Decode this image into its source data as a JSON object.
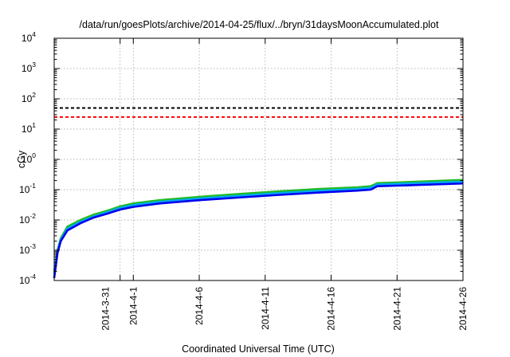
{
  "chart_data": {
    "type": "line",
    "title": "/data/run/goesPlots/archive/2014-04-25/flux/../bryn/31daysMoonAccumulated.plot",
    "xlabel": "Coordinated Universal Time (UTC)",
    "ylabel": "cGy",
    "y_scale": "log",
    "ylim": [
      0.0001,
      10000
    ],
    "y_ticks": [
      {
        "base": "10",
        "exp": "-4"
      },
      {
        "base": "10",
        "exp": "-3"
      },
      {
        "base": "10",
        "exp": "-2"
      },
      {
        "base": "10",
        "exp": "-1"
      },
      {
        "base": "10",
        "exp": "0"
      },
      {
        "base": "10",
        "exp": "1"
      },
      {
        "base": "10",
        "exp": "2"
      },
      {
        "base": "10",
        "exp": "3"
      },
      {
        "base": "10",
        "exp": "4"
      }
    ],
    "xlim": [
      "2014-03-26",
      "2014-04-26"
    ],
    "x_ticks": [
      "2014-3-31",
      "2014-4-1",
      "2014-4-6",
      "2014-4-11",
      "2014-4-16",
      "2014-4-21",
      "2014-4-26"
    ],
    "grid": true,
    "reference_lines": [
      {
        "y": 50,
        "color": "#000000",
        "style": "dashed"
      },
      {
        "y": 25,
        "color": "#ff0000",
        "style": "dashed"
      }
    ],
    "series": [
      {
        "color": "#22bb22",
        "x": [
          "2014-03-26",
          "2014-03-26 06:00",
          "2014-03-26 12:00",
          "2014-03-27",
          "2014-03-28",
          "2014-03-29",
          "2014-03-30",
          "2014-03-31",
          "2014-04-01",
          "2014-04-03",
          "2014-04-06",
          "2014-04-09",
          "2014-04-12",
          "2014-04-15",
          "2014-04-18",
          "2014-04-19",
          "2014-04-19 12:00",
          "2014-04-22",
          "2014-04-26"
        ],
        "y": [
          0.0002,
          0.001,
          0.0025,
          0.006,
          0.01,
          0.015,
          0.02,
          0.028,
          0.035,
          0.045,
          0.058,
          0.072,
          0.088,
          0.105,
          0.12,
          0.13,
          0.165,
          0.18,
          0.21
        ]
      },
      {
        "color": "#00aaee",
        "x": [
          "2014-03-26",
          "2014-03-26 06:00",
          "2014-03-26 12:00",
          "2014-03-27",
          "2014-03-28",
          "2014-03-29",
          "2014-03-30",
          "2014-03-31",
          "2014-04-01",
          "2014-04-03",
          "2014-04-06",
          "2014-04-09",
          "2014-04-12",
          "2014-04-15",
          "2014-04-18",
          "2014-04-19",
          "2014-04-19 12:00",
          "2014-04-22",
          "2014-04-26"
        ],
        "y": [
          0.00016,
          0.0009,
          0.0022,
          0.0052,
          0.0088,
          0.013,
          0.018,
          0.025,
          0.031,
          0.04,
          0.051,
          0.063,
          0.077,
          0.092,
          0.106,
          0.115,
          0.148,
          0.161,
          0.185
        ]
      },
      {
        "color": "#0000ee",
        "x": [
          "2014-03-26",
          "2014-03-26 06:00",
          "2014-03-26 12:00",
          "2014-03-27",
          "2014-03-28",
          "2014-03-29",
          "2014-03-30",
          "2014-03-31",
          "2014-04-01",
          "2014-04-03",
          "2014-04-06",
          "2014-04-09",
          "2014-04-12",
          "2014-04-15",
          "2014-04-18",
          "2014-04-19",
          "2014-04-19 12:00",
          "2014-04-22",
          "2014-04-26"
        ],
        "y": [
          0.00012,
          0.0008,
          0.002,
          0.0045,
          0.0078,
          0.012,
          0.016,
          0.022,
          0.027,
          0.035,
          0.045,
          0.055,
          0.067,
          0.08,
          0.093,
          0.1,
          0.13,
          0.14,
          0.16
        ]
      }
    ]
  }
}
